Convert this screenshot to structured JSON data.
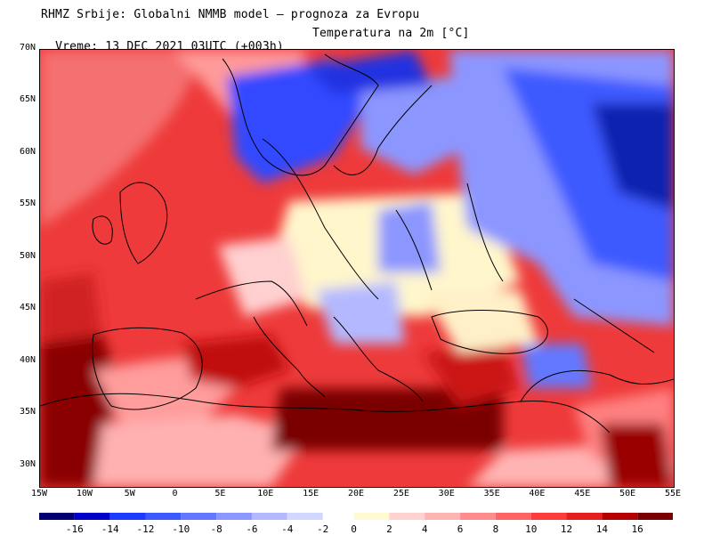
{
  "header": {
    "line1": "RHMZ Srbije: Globalni NMMB model — prognoza za Evropu",
    "line2": "Vreme: 13 DEC 2021 03UTC (+003h)",
    "variable": "Temperatura na 2m [°C]"
  },
  "map": {
    "lon_range": [
      -15,
      55
    ],
    "lat_range": [
      28,
      70
    ],
    "lat_labels": [
      "30N",
      "35N",
      "40N",
      "45N",
      "50N",
      "55N",
      "60N",
      "65N",
      "70N"
    ],
    "lon_labels": [
      "15W",
      "10W",
      "5W",
      "0",
      "5E",
      "10E",
      "15E",
      "20E",
      "25E",
      "30E",
      "35E",
      "40E",
      "45E",
      "50E",
      "55E"
    ]
  },
  "colorbar": {
    "colors": [
      "#000070",
      "#0000c8",
      "#1e3cff",
      "#3c5aff",
      "#6478ff",
      "#8c96ff",
      "#b4b9ff",
      "#d2d7ff",
      "#fffad2",
      "#ffd2d2",
      "#ffb4b4",
      "#ff8c8c",
      "#ff6464",
      "#ff3c3c",
      "#e61e1e",
      "#b40000",
      "#780000"
    ],
    "tick_labels": [
      "-16",
      "-14",
      "-12",
      "-10",
      "-8",
      "-6",
      "-4",
      "-2",
      "0",
      "2",
      "4",
      "6",
      "8",
      "10",
      "12",
      "14",
      "16"
    ]
  }
}
